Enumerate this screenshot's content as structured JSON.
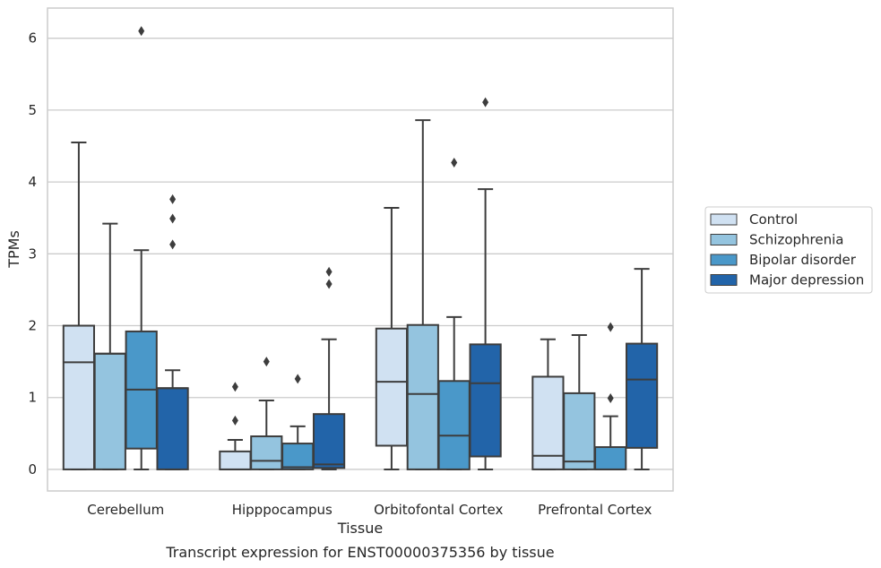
{
  "chart_data": {
    "type": "boxplot",
    "title": "",
    "caption": "Transcript expression for ENST00000375356 by tissue",
    "xlabel": "Tissue",
    "ylabel": "TPMs",
    "ylim": [
      -0.3,
      6.42
    ],
    "yticks": [
      0,
      1,
      2,
      3,
      4,
      5,
      6
    ],
    "grid": "horizontal",
    "legend_position": "right",
    "categories": [
      "Cerebellum",
      "Hipppocampus",
      "Orbitofontal Cortex",
      "Prefrontal Cortex"
    ],
    "series": [
      {
        "name": "Control",
        "color": "#d0e1f2",
        "boxes": [
          {
            "whisker_low": 0,
            "q1": 0,
            "median": 1.49,
            "q3": 2.0,
            "whisker_high": 4.55,
            "outliers": []
          },
          {
            "whisker_low": 0,
            "q1": 0,
            "median": 0,
            "q3": 0.25,
            "whisker_high": 0.41,
            "outliers": [
              0.68,
              1.15
            ]
          },
          {
            "whisker_low": 0,
            "q1": 0.33,
            "median": 1.22,
            "q3": 1.96,
            "whisker_high": 3.64,
            "outliers": []
          },
          {
            "whisker_low": 0,
            "q1": 0,
            "median": 0.19,
            "q3": 1.29,
            "whisker_high": 1.81,
            "outliers": []
          }
        ]
      },
      {
        "name": "Schizophrenia",
        "color": "#94c4df",
        "boxes": [
          {
            "whisker_low": 0,
            "q1": 0,
            "median": 1.61,
            "q3": 1.61,
            "whisker_high": 3.42,
            "outliers": []
          },
          {
            "whisker_low": 0,
            "q1": 0,
            "median": 0.12,
            "q3": 0.46,
            "whisker_high": 0.96,
            "outliers": [
              1.5
            ]
          },
          {
            "whisker_low": 0,
            "q1": 0,
            "median": 1.05,
            "q3": 2.01,
            "whisker_high": 4.86,
            "outliers": []
          },
          {
            "whisker_low": 0,
            "q1": 0,
            "median": 0.11,
            "q3": 1.06,
            "whisker_high": 1.87,
            "outliers": []
          }
        ]
      },
      {
        "name": "Bipolar disorder",
        "color": "#4a98c9",
        "boxes": [
          {
            "whisker_low": 0,
            "q1": 0.29,
            "median": 1.11,
            "q3": 1.92,
            "whisker_high": 3.05,
            "outliers": [
              6.1
            ]
          },
          {
            "whisker_low": 0,
            "q1": 0,
            "median": 0.03,
            "q3": 0.36,
            "whisker_high": 0.6,
            "outliers": [
              1.26
            ]
          },
          {
            "whisker_low": 0,
            "q1": 0,
            "median": 0.47,
            "q3": 1.23,
            "whisker_high": 2.12,
            "outliers": [
              4.27
            ]
          },
          {
            "whisker_low": 0,
            "q1": 0,
            "median": 0,
            "q3": 0.31,
            "whisker_high": 0.74,
            "outliers": [
              0.99,
              1.98
            ]
          }
        ]
      },
      {
        "name": "Major depression",
        "color": "#2264a9",
        "boxes": [
          {
            "whisker_low": 0,
            "q1": 0,
            "median": 1.13,
            "q3": 1.13,
            "whisker_high": 1.38,
            "outliers": [
              3.13,
              3.49,
              3.76
            ]
          },
          {
            "whisker_low": 0,
            "q1": 0.02,
            "median": 0.07,
            "q3": 0.77,
            "whisker_high": 1.81,
            "outliers": [
              2.58,
              2.75
            ]
          },
          {
            "whisker_low": 0,
            "q1": 0.18,
            "median": 1.2,
            "q3": 1.74,
            "whisker_high": 3.9,
            "outliers": [
              5.11
            ]
          },
          {
            "whisker_low": 0,
            "q1": 0.3,
            "median": 1.25,
            "q3": 1.75,
            "whisker_high": 2.79,
            "outliers": []
          }
        ]
      }
    ]
  }
}
